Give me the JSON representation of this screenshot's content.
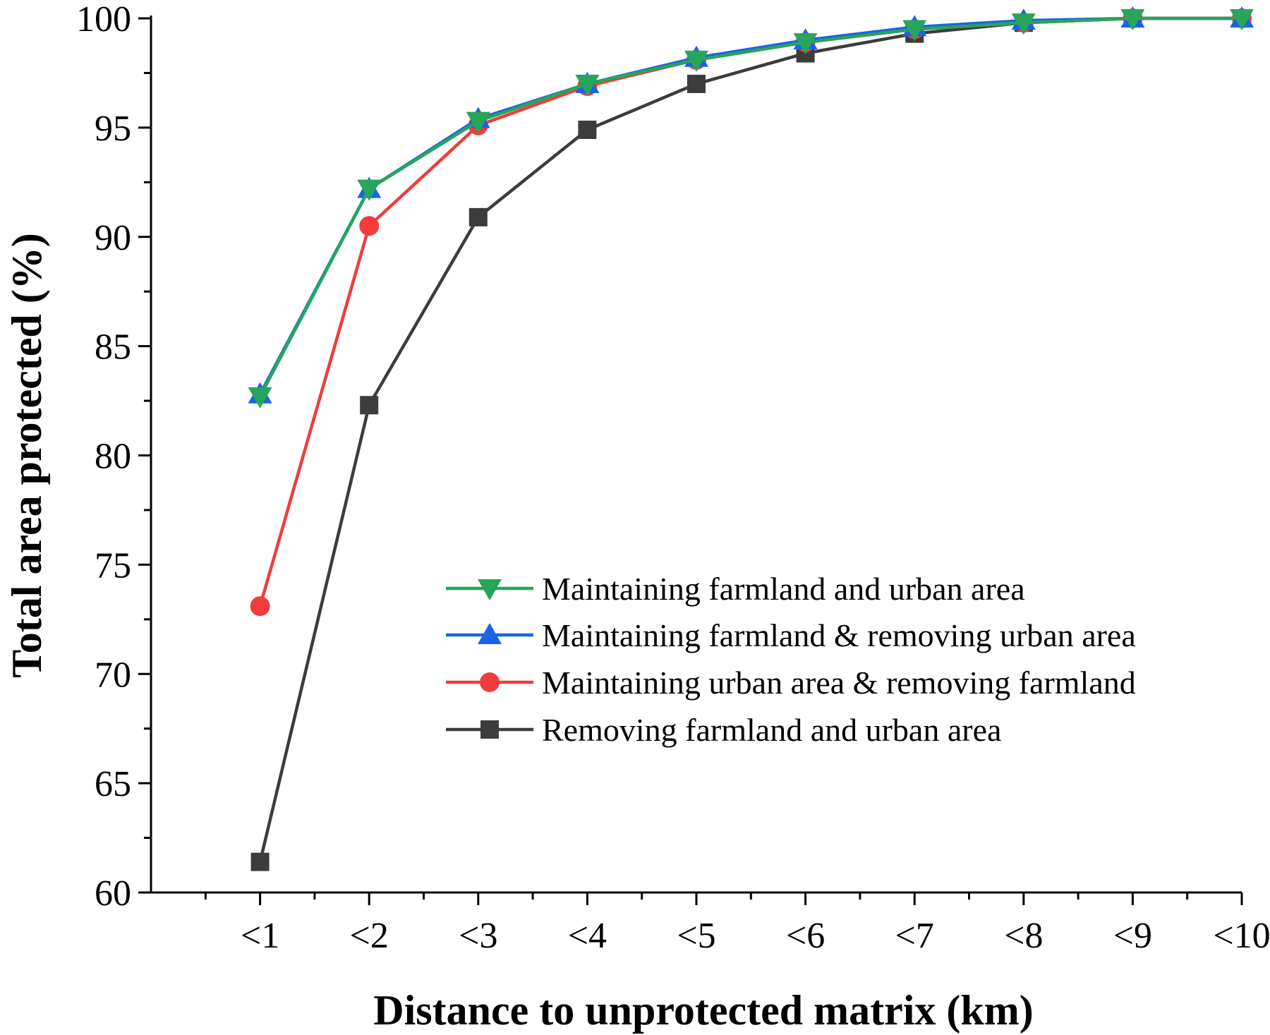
{
  "chart_data": {
    "type": "line",
    "title": "",
    "xlabel": "Distance to unprotected matrix (km)",
    "ylabel": "Total area protected (%)",
    "categories": [
      "<1",
      "<2",
      "<3",
      "<4",
      "<5",
      "<6",
      "<7",
      "<8",
      "<9",
      "<10"
    ],
    "ylim": [
      60,
      100
    ],
    "yticks": [
      60,
      65,
      70,
      75,
      80,
      85,
      90,
      95,
      100
    ],
    "grid": false,
    "legend_position": "center-right",
    "series": [
      {
        "name": "Maintaining farmland and urban area",
        "color": "#27a55a",
        "marker": "triangle-down",
        "values": [
          82.7,
          92.2,
          95.3,
          97.0,
          98.1,
          98.9,
          99.5,
          99.8,
          100.0,
          100.0
        ]
      },
      {
        "name": "Maintaining farmland & removing urban area",
        "color": "#1a63e6",
        "marker": "triangle-up",
        "values": [
          82.8,
          92.2,
          95.4,
          97.0,
          98.2,
          99.0,
          99.6,
          99.9,
          100.0,
          100.0
        ]
      },
      {
        "name": "Maintaining urban area & removing farmland",
        "color": "#f03c3c",
        "marker": "circle",
        "values": [
          73.1,
          90.5,
          95.1,
          96.9,
          98.1,
          98.9,
          99.5,
          99.8,
          100.0,
          100.0
        ]
      },
      {
        "name": "Removing farmland and urban area",
        "color": "#3c3c3c",
        "marker": "square",
        "values": [
          61.4,
          82.3,
          90.9,
          94.9,
          97.0,
          98.4,
          99.3,
          99.8,
          100.0,
          100.0
        ]
      }
    ]
  }
}
